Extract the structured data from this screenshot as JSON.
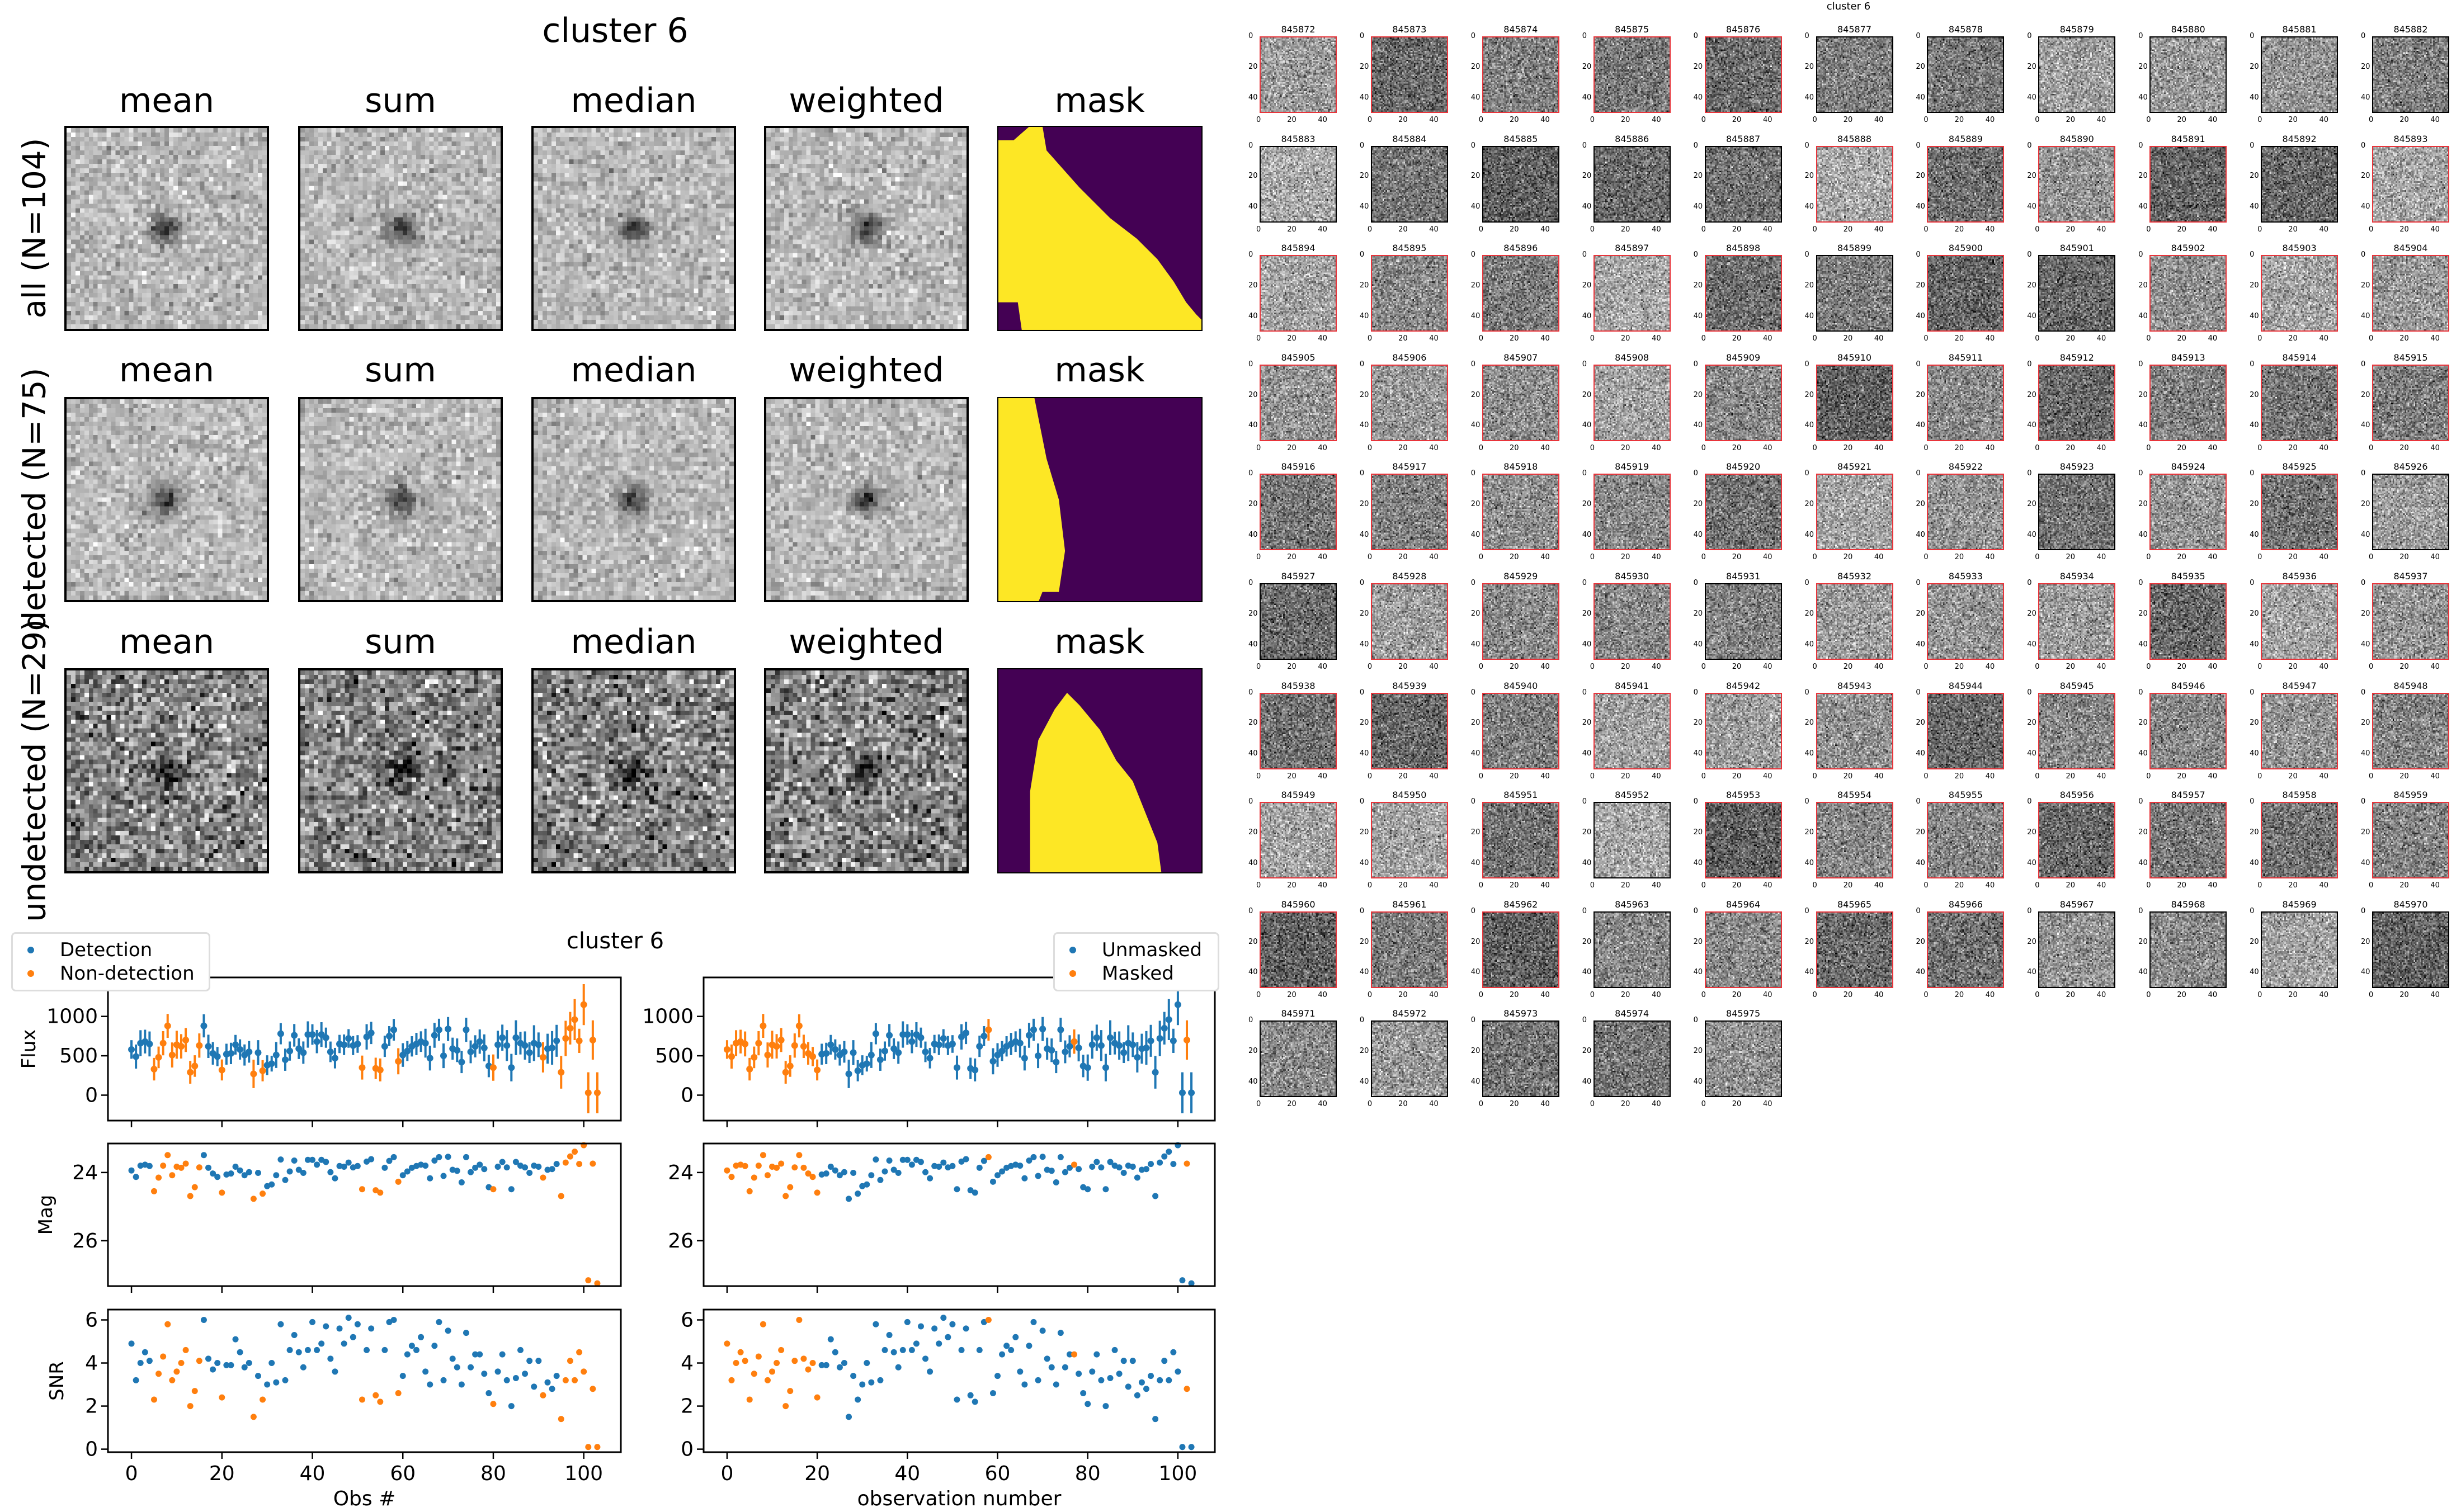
{
  "title": "cluster 6",
  "image_grid": {
    "columns": [
      "mean",
      "sum",
      "median",
      "weighted",
      "mask"
    ],
    "rows": [
      "all (N=104)",
      "detected (N=75)",
      "undetected (N=29)"
    ],
    "mask_colors": {
      "in": "#fde725",
      "out": "#440154"
    }
  },
  "colors": {
    "blue": "#1f77b4",
    "orange": "#ff7f0e",
    "detection_border": "#e8343a",
    "plain_border": "#000000"
  },
  "thumbnails": {
    "title": "cluster 6",
    "axis_ticks": [
      0,
      20,
      40
    ],
    "ids": [
      "845872",
      "845873",
      "845874",
      "845875",
      "845876",
      "845877",
      "845878",
      "845879",
      "845880",
      "845881",
      "845882",
      "845883",
      "845884",
      "845885",
      "845886",
      "845887",
      "845888",
      "845889",
      "845890",
      "845891",
      "845892",
      "845893",
      "845894",
      "845895",
      "845896",
      "845897",
      "845898",
      "845899",
      "845900",
      "845901",
      "845902",
      "845903",
      "845904",
      "845905",
      "845906",
      "845907",
      "845908",
      "845909",
      "845910",
      "845911",
      "845912",
      "845913",
      "845914",
      "845915",
      "845916",
      "845917",
      "845918",
      "845919",
      "845920",
      "845921",
      "845922",
      "845923",
      "845924",
      "845925",
      "845926",
      "845927",
      "845928",
      "845929",
      "845930",
      "845931",
      "845932",
      "845933",
      "845934",
      "845935",
      "845936",
      "845937",
      "845938",
      "845939",
      "845940",
      "845941",
      "845942",
      "845943",
      "845944",
      "845945",
      "845946",
      "845947",
      "845948",
      "845949",
      "845950",
      "845951",
      "845952",
      "845953",
      "845954",
      "845955",
      "845956",
      "845957",
      "845958",
      "845959",
      "845960",
      "845961",
      "845962",
      "845963",
      "845964",
      "845965",
      "845966",
      "845967",
      "845968",
      "845969",
      "845970",
      "845971",
      "845972",
      "845973",
      "845974",
      "845975"
    ]
  },
  "chart_data": {
    "type": "scatter",
    "title": "cluster 6",
    "x_start": 0,
    "xlim": [
      -5.2,
      108.2
    ],
    "xticks": [
      0,
      20,
      40,
      60,
      80,
      100
    ],
    "flux": [
      580,
      490,
      660,
      680,
      650,
      330,
      480,
      660,
      880,
      510,
      640,
      620,
      700,
      290,
      370,
      630,
      880,
      620,
      530,
      490,
      320,
      520,
      530,
      640,
      580,
      510,
      550,
      270,
      540,
      310,
      380,
      400,
      510,
      780,
      450,
      560,
      760,
      590,
      540,
      770,
      770,
      680,
      770,
      730,
      550,
      470,
      650,
      640,
      720,
      630,
      650,
      350,
      740,
      790,
      340,
      320,
      620,
      750,
      830,
      430,
      510,
      560,
      620,
      650,
      680,
      660,
      470,
      760,
      830,
      500,
      840,
      590,
      570,
      420,
      830,
      550,
      620,
      680,
      600,
      370,
      350,
      640,
      730,
      630,
      350,
      730,
      660,
      630,
      540,
      660,
      640,
      480,
      590,
      600,
      690,
      290,
      720,
      850,
      960,
      690,
      1150,
      30,
      700,
      30
    ],
    "mag": [
      23.94,
      24.13,
      23.8,
      23.77,
      23.81,
      24.55,
      24.15,
      23.8,
      23.49,
      24.08,
      23.83,
      23.86,
      23.74,
      24.69,
      24.43,
      23.85,
      23.49,
      23.86,
      24.03,
      24.13,
      24.59,
      24.06,
      24.03,
      23.83,
      23.94,
      24.08,
      23.99,
      24.77,
      24.01,
      24.62,
      24.4,
      24.35,
      24.08,
      23.62,
      24.22,
      23.97,
      23.65,
      23.92,
      24.01,
      23.63,
      23.63,
      23.77,
      23.63,
      23.69,
      23.99,
      24.17,
      23.81,
      23.83,
      23.71,
      23.85,
      23.81,
      24.49,
      23.68,
      23.61,
      24.52,
      24.59,
      23.86,
      23.66,
      23.55,
      24.27,
      24.08,
      23.97,
      23.86,
      23.81,
      23.77,
      23.8,
      24.17,
      23.65,
      23.55,
      24.1,
      23.54,
      23.92,
      23.95,
      24.29,
      23.55,
      23.99,
      23.86,
      23.77,
      23.9,
      24.43,
      24.49,
      23.83,
      23.69,
      23.85,
      24.49,
      23.69,
      23.8,
      23.85,
      24.01,
      23.8,
      23.83,
      24.15,
      23.92,
      23.9,
      23.75,
      24.69,
      23.71,
      23.53,
      23.39,
      23.75,
      23.2,
      27.16,
      23.74,
      27.25
    ],
    "snr": [
      4.9,
      3.2,
      4.0,
      4.5,
      4.1,
      2.3,
      3.5,
      4.3,
      5.8,
      3.2,
      3.6,
      4.0,
      4.6,
      2.0,
      2.7,
      4.1,
      6.0,
      4.2,
      3.7,
      4.0,
      2.4,
      3.9,
      3.9,
      5.1,
      4.5,
      3.8,
      4.0,
      1.5,
      3.4,
      2.3,
      3.0,
      4.0,
      3.1,
      5.8,
      3.2,
      4.6,
      5.3,
      4.5,
      3.8,
      4.6,
      5.9,
      4.6,
      4.9,
      5.7,
      4.2,
      3.6,
      5.6,
      4.9,
      6.1,
      5.2,
      5.8,
      2.3,
      4.6,
      5.6,
      2.5,
      2.2,
      4.6,
      5.9,
      6.0,
      2.6,
      3.4,
      4.4,
      4.8,
      4.6,
      5.2,
      3.6,
      3.0,
      4.8,
      5.9,
      3.2,
      5.5,
      4.2,
      3.8,
      3.0,
      5.4,
      3.8,
      4.4,
      4.4,
      3.5,
      2.6,
      2.1,
      3.6,
      4.4,
      3.2,
      2.0,
      3.3,
      4.6,
      3.5,
      4.1,
      2.9,
      4.1,
      2.5,
      3.1,
      2.8,
      3.4,
      1.4,
      3.2,
      4.1,
      3.2,
      4.5,
      3.6,
      0.1,
      2.8,
      0.1
    ],
    "nondetection_indices": [
      5,
      6,
      7,
      8,
      9,
      10,
      11,
      12,
      13,
      14,
      15,
      20,
      27,
      29,
      51,
      54,
      55,
      59,
      80,
      91,
      95,
      96,
      97,
      98,
      99,
      100,
      101,
      102,
      103
    ],
    "masked_indices": [
      0,
      1,
      2,
      3,
      4,
      5,
      6,
      7,
      8,
      9,
      10,
      11,
      12,
      13,
      14,
      15,
      16,
      17,
      18,
      19,
      20,
      58,
      77,
      102
    ],
    "rows": [
      {
        "ylabel": "Flux",
        "ylim": [
          -323,
          1495
        ],
        "yticks": [
          0,
          500,
          1000
        ],
        "errorbars": true,
        "inverted": false
      },
      {
        "ylabel": "Mag",
        "ylim": [
          23.15,
          27.33
        ],
        "yticks": [
          24,
          26
        ],
        "errorbars": false,
        "inverted": true
      },
      {
        "ylabel": "SNR",
        "ylim": [
          -0.14,
          6.48
        ],
        "yticks": [
          0,
          2,
          4,
          6
        ],
        "errorbars": false,
        "inverted": false
      }
    ],
    "panels": [
      {
        "xlabel": "Obs #",
        "legend": [
          "Detection",
          "Non-detection"
        ],
        "legend_placement": "upper-left",
        "color_by": "detection"
      },
      {
        "xlabel": "observation number",
        "legend": [
          "Unmasked",
          "Masked"
        ],
        "legend_placement": "upper-right",
        "color_by": "mask"
      }
    ]
  }
}
